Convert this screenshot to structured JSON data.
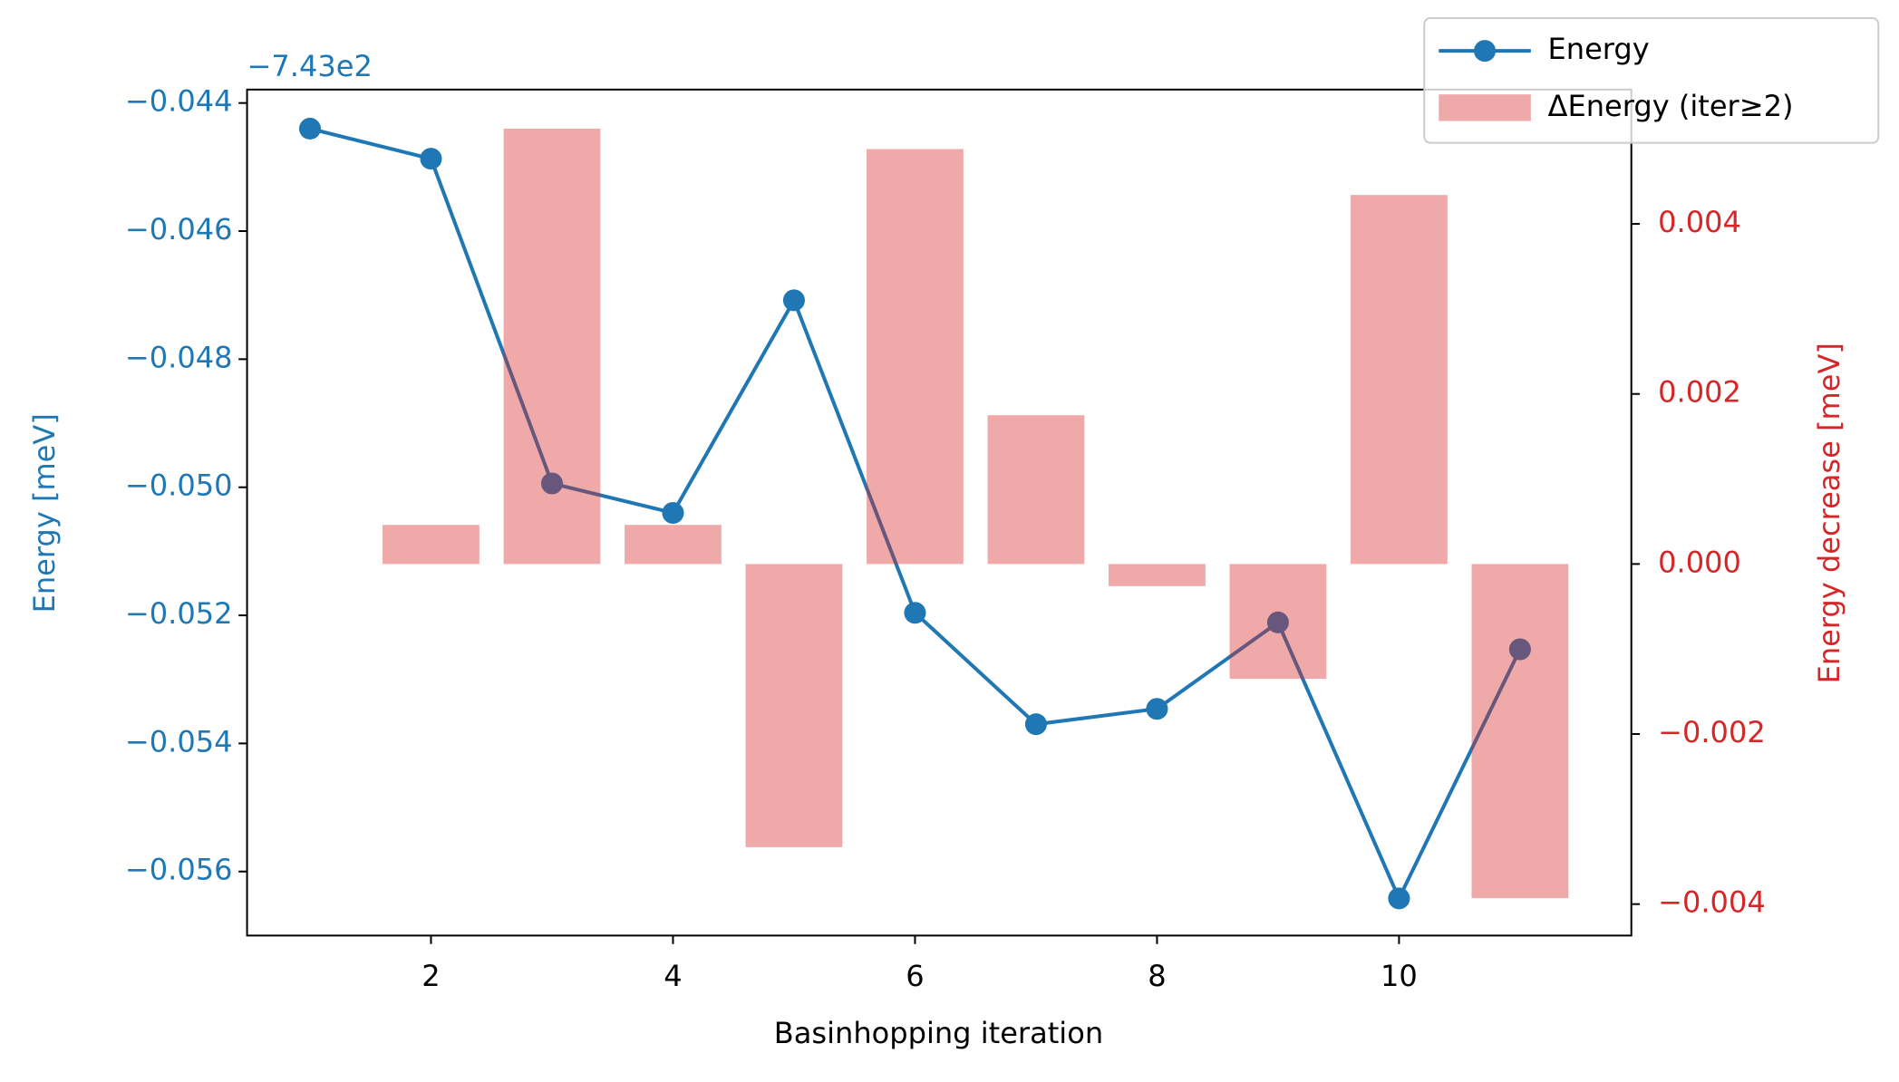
{
  "chart_data": {
    "type": "combo",
    "offset_text": "−7.43e2",
    "xlabel": "Basinhopping iteration",
    "ylabel": "Energy [meV]",
    "y2label": "Energy decrease [meV]",
    "xlim": [
      0.48,
      11.92
    ],
    "ylim": [
      -0.057,
      -0.04379
    ],
    "y2lim": [
      -0.00437,
      0.00558
    ],
    "xticks": [
      2,
      4,
      6,
      8,
      10
    ],
    "yticks": [
      {
        "value": -0.044,
        "label": "−0.044"
      },
      {
        "value": -0.046,
        "label": "−0.046"
      },
      {
        "value": -0.048,
        "label": "−0.048"
      },
      {
        "value": -0.05,
        "label": "−0.050"
      },
      {
        "value": -0.052,
        "label": "−0.052"
      },
      {
        "value": -0.054,
        "label": "−0.054"
      },
      {
        "value": -0.056,
        "label": "−0.056"
      }
    ],
    "y2ticks": [
      {
        "value": -0.004,
        "label": "−0.004"
      },
      {
        "value": -0.002,
        "label": "−0.002"
      },
      {
        "value": 0,
        "label": "0.000"
      },
      0.002,
      0.004
    ],
    "ylabel_color": "#1f77b4",
    "y2label_color": "#d62728",
    "legend": "upper right",
    "series": [
      {
        "name": "Energy",
        "type": "line",
        "color": "#1f77b4",
        "x": [
          1,
          2,
          3,
          4,
          5,
          6,
          7,
          8,
          9,
          10,
          11
        ],
        "values": [
          -0.0444,
          -0.04487,
          -0.04994,
          -0.0504,
          -0.04708,
          -0.05196,
          -0.0537,
          -0.05346,
          -0.05211,
          -0.05642,
          -0.05253
        ]
      },
      {
        "name": "ΔEnergy (iter≥2)",
        "type": "bar",
        "axis": "y2",
        "color": "#d62728",
        "x": [
          2,
          3,
          4,
          5,
          6,
          7,
          8,
          9,
          10,
          11
        ],
        "values": [
          0.00046,
          0.00512,
          0.00046,
          -0.00333,
          0.00488,
          0.00175,
          -0.00026,
          -0.00135,
          0.00434,
          -0.00393
        ]
      }
    ]
  }
}
